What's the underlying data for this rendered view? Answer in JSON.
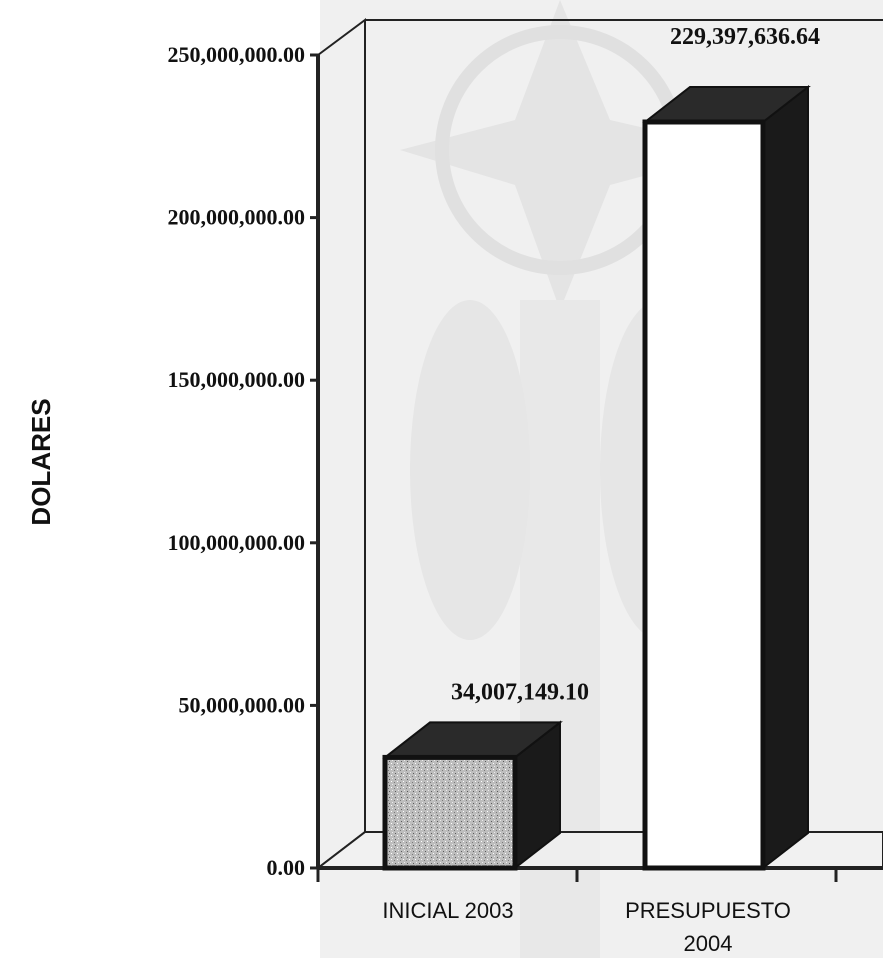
{
  "chart_data": {
    "type": "bar",
    "title": "",
    "xlabel": "",
    "ylabel": "DOLARES",
    "ylim": [
      0,
      250000000
    ],
    "yticks": [
      "0.00",
      "50,000,000.00",
      "100,000,000.00",
      "150,000,000.00",
      "200,000,000.00",
      "250,000,000.00"
    ],
    "ytick_values": [
      0,
      50000000,
      100000000,
      150000000,
      200000000,
      250000000
    ],
    "categories": [
      "INICIAL 2003",
      "PRESUPUESTO 2004"
    ],
    "category_lines": [
      [
        "INICIAL 2003"
      ],
      [
        "PRESUPUESTO",
        "2004"
      ]
    ],
    "values": [
      34007149.1,
      229397636.64
    ],
    "data_labels": [
      "34,007,149.10",
      "229,397,636.64"
    ],
    "grid": false,
    "legend": "none",
    "colors": {
      "front": "#ffffff",
      "side": "#1a1a1a",
      "top": "#2a2a2a",
      "frame": "#222222",
      "background_figure": "#d9d9d9"
    }
  }
}
